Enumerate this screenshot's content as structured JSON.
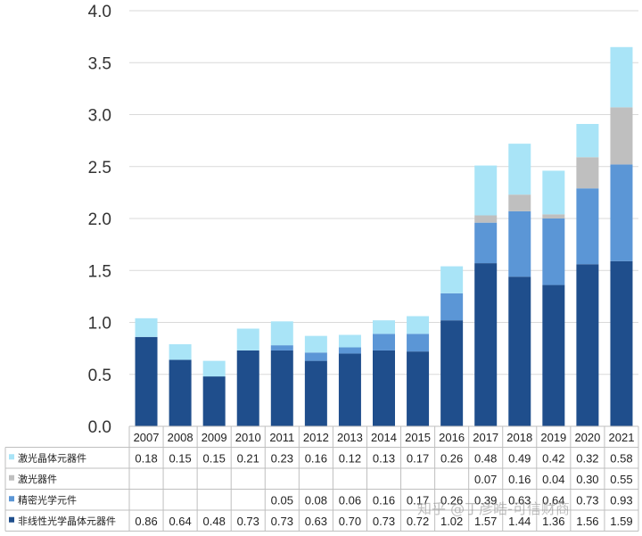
{
  "watermark": "知乎 @丁彦皓-可信财商",
  "colors": {
    "laser_crystal": "#a9e4f7",
    "laser_device": "#bfbfbf",
    "precision_optics": "#5b96d6",
    "nonlinear_crystal": "#1f4e8c",
    "grid": "#d9d9d9",
    "table_border": "#bfbfbf",
    "text": "#222222"
  },
  "chart_data": {
    "type": "bar",
    "stacked": true,
    "title": "",
    "xlabel": "",
    "ylabel": "",
    "ylim": [
      0,
      4.0
    ],
    "yticks": [
      "0.0",
      "0.5",
      "1.0",
      "1.5",
      "2.0",
      "2.5",
      "3.0",
      "3.5",
      "4.0"
    ],
    "grid": true,
    "legend": "table-left",
    "categories": [
      "2007",
      "2008",
      "2009",
      "2010",
      "2011",
      "2012",
      "2013",
      "2014",
      "2015",
      "2016",
      "2017",
      "2018",
      "2019",
      "2020",
      "2021"
    ],
    "series": [
      {
        "name": "非线性光学晶体元器件",
        "color_key": "nonlinear_crystal",
        "values": [
          0.86,
          0.64,
          0.48,
          0.73,
          0.73,
          0.63,
          0.7,
          0.73,
          0.72,
          1.02,
          1.57,
          1.44,
          1.36,
          1.56,
          1.59
        ],
        "labels": [
          "0.86",
          "0.64",
          "0.48",
          "0.73",
          "0.73",
          "0.63",
          "0.70",
          "0.73",
          "0.72",
          "1.02",
          "1.57",
          "1.44",
          "1.36",
          "1.56",
          "1.59"
        ]
      },
      {
        "name": "精密光学元件",
        "color_key": "precision_optics",
        "values": [
          null,
          null,
          null,
          null,
          0.05,
          0.08,
          0.06,
          0.16,
          0.17,
          0.26,
          0.39,
          0.63,
          0.64,
          0.73,
          0.93
        ],
        "labels": [
          "",
          "",
          "",
          "",
          "0.05",
          "0.08",
          "0.06",
          "0.16",
          "0.17",
          "0.26",
          "0.39",
          "0.63",
          "0.64",
          "0.73",
          "0.93"
        ]
      },
      {
        "name": "激光器件",
        "color_key": "laser_device",
        "values": [
          null,
          null,
          null,
          null,
          null,
          null,
          null,
          null,
          null,
          null,
          0.07,
          0.16,
          0.04,
          0.3,
          0.55
        ],
        "labels": [
          "",
          "",
          "",
          "",
          "",
          "",
          "",
          "",
          "",
          "",
          "0.07",
          "0.16",
          "0.04",
          "0.30",
          "0.55"
        ]
      },
      {
        "name": "激光晶体元器件",
        "color_key": "laser_crystal",
        "values": [
          0.18,
          0.15,
          0.15,
          0.21,
          0.23,
          0.16,
          0.12,
          0.13,
          0.17,
          0.26,
          0.48,
          0.49,
          0.42,
          0.32,
          0.58
        ],
        "labels": [
          "0.18",
          "0.15",
          "0.15",
          "0.21",
          "0.23",
          "0.16",
          "0.12",
          "0.13",
          "0.17",
          "0.26",
          "0.48",
          "0.49",
          "0.42",
          "0.32",
          "0.58"
        ]
      }
    ],
    "table_rows": [
      "laser_crystal_row",
      "laser_device_row",
      "precision_optics_row",
      "nonlinear_crystal_row"
    ]
  }
}
